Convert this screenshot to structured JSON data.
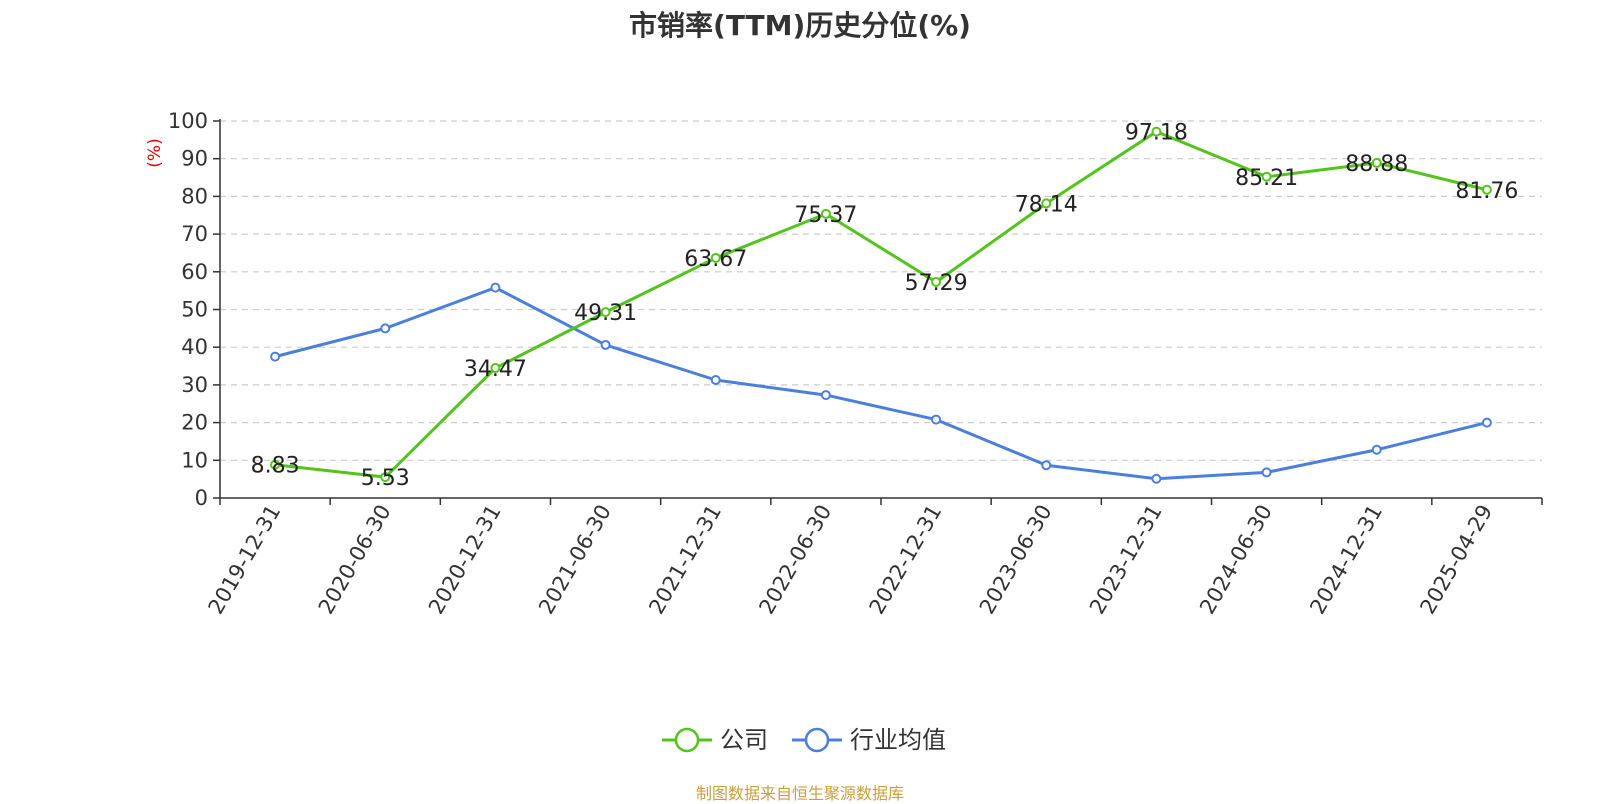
{
  "title": "市销率(TTM)历史分位(%)",
  "footer": "制图数据来自恒生聚源数据库",
  "colors": {
    "company": "#52c41a",
    "industry": "#4a7fdc",
    "grid": "#cccccc",
    "axis": "#333333",
    "unit": "#e00000"
  },
  "chart_data": {
    "type": "line",
    "title": "市销率(TTM)历史分位(%)",
    "ylabel": "(%)",
    "xlabel": "",
    "ylim": [
      0,
      100
    ],
    "yticks": [
      0,
      10,
      20,
      30,
      40,
      50,
      60,
      70,
      80,
      90,
      100
    ],
    "grid": true,
    "legend_position": "bottom",
    "categories": [
      "2019-12-31",
      "2020-06-30",
      "2020-12-31",
      "2021-06-30",
      "2021-12-31",
      "2022-06-30",
      "2022-12-31",
      "2023-06-30",
      "2023-12-31",
      "2024-06-30",
      "2024-12-31",
      "2025-04-29"
    ],
    "series": [
      {
        "name": "公司",
        "values": [
          8.83,
          5.53,
          34.47,
          49.31,
          63.67,
          75.37,
          57.29,
          78.14,
          97.18,
          85.21,
          88.88,
          81.76
        ],
        "show_labels": true
      },
      {
        "name": "行业均值",
        "values": [
          37.5,
          45.0,
          55.8,
          40.6,
          31.3,
          27.3,
          20.8,
          8.7,
          5.1,
          6.8,
          12.8,
          20.0
        ],
        "show_labels": false
      }
    ]
  }
}
